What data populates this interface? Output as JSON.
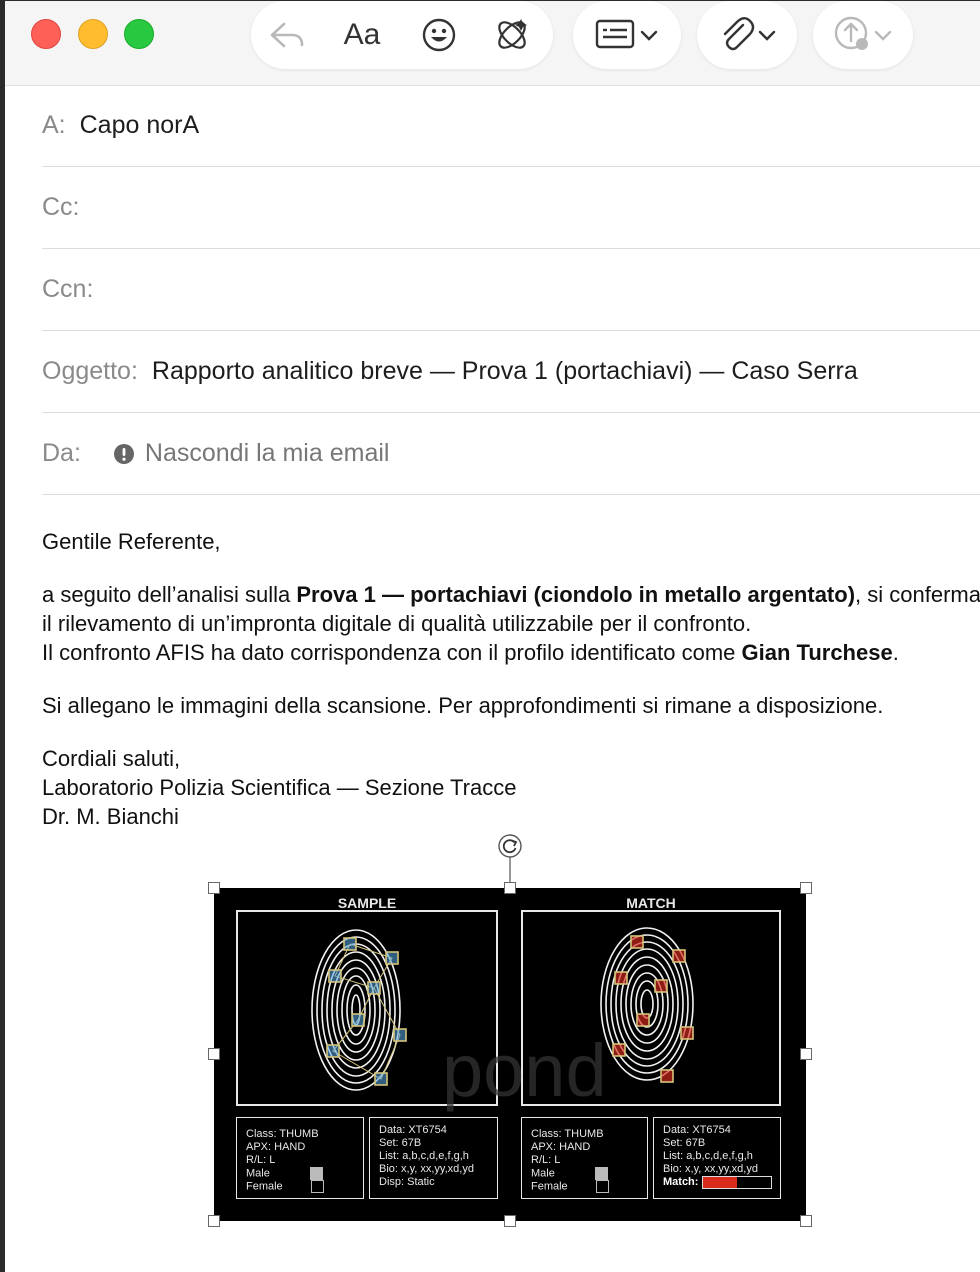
{
  "toolbar": {
    "icons": [
      "reply-icon",
      "format-text-icon",
      "emoji-icon",
      "writing-tools-icon",
      "header-fields-icon",
      "attachment-icon",
      "send-icon"
    ],
    "format_label": "Aa"
  },
  "header": {
    "to_label": "A:",
    "to_value": "Capo norA",
    "cc_label": "Cc:",
    "bcc_label": "Ccn:",
    "subject_label": "Oggetto:",
    "subject_value": "Rapporto analitico breve — Prova 1 (portachiavi) — Caso Serra",
    "from_label": "Da:",
    "from_value": "Nascondi la mia email"
  },
  "body": {
    "greeting": "Gentile Referente,",
    "p1_a": "a seguito dell’analisi sulla ",
    "p1_bold": "Prova 1 — portachiavi (ciondolo in metallo argentato)",
    "p1_b": ", si conferma il rilevamento di un’impronta digitale di qualità utilizzabile per il confronto.",
    "p2_a": "Il confronto AFIS ha dato corrispondenza con il profilo identificato come ",
    "p2_bold": "Gian Turchese",
    "p2_b": ".",
    "p3": "Si allegano le immagini della scansione. Per approfondimenti si rimane a disposizione.",
    "closing": "Cordiali saluti,",
    "signature_line1": "Laboratorio Polizia Scientifica — Sezione Tracce",
    "signature_line2": "Dr. M. Bianchi"
  },
  "attachment": {
    "sample_title": "SAMPLE",
    "match_title": "MATCH",
    "watermark": "pond",
    "sample_info": [
      "Class: THUMB",
      "APX: HAND",
      "R/L:  L",
      "Male",
      "Female"
    ],
    "sample_data": [
      "Data: XT6754",
      "Set: 67B",
      "List: a,b,c,d,e,f,g,h",
      "Bio: x,y, xx,yy,xd,yd",
      "Disp: Static"
    ],
    "match_info": [
      "Class: THUMB",
      "APX: HAND",
      "R/L:  L",
      "Male",
      "Female"
    ],
    "match_data": [
      "Data: XT6754",
      "Set: 67B",
      "List: a,b,c,d,e,f,g,h",
      "Bio: x,y, xx,yy,xd,yd",
      "Match:"
    ],
    "match_fill": 0.5,
    "colors": {
      "match_bar": "#d92b1c",
      "sample_marker": "#5aa9e6",
      "match_marker": "#d92b1c"
    }
  }
}
